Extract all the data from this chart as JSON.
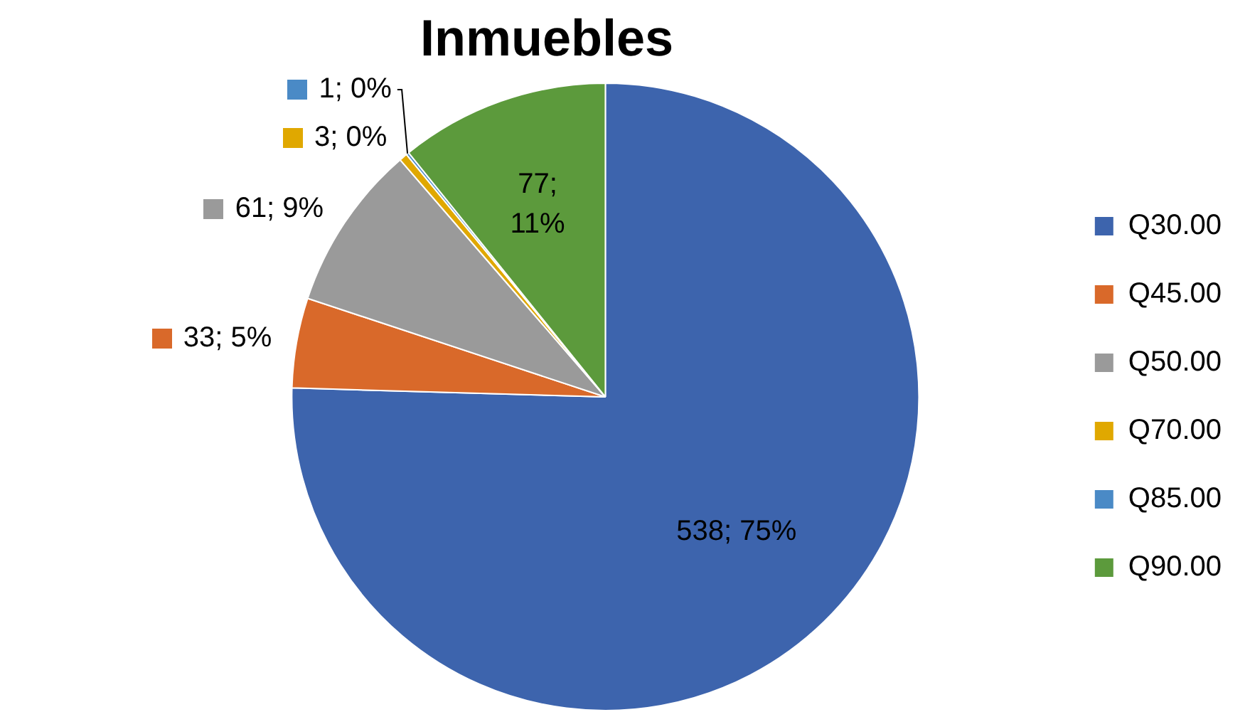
{
  "chart_data": {
    "type": "pie",
    "title": "Inmuebles",
    "categories": [
      "Q30.00",
      "Q45.00",
      "Q50.00",
      "Q70.00",
      "Q85.00",
      "Q90.00"
    ],
    "values": [
      538,
      33,
      61,
      3,
      1,
      77
    ],
    "colors": [
      "#3d64ad",
      "#d9692a",
      "#9a9a9a",
      "#e0a800",
      "#4a8ac6",
      "#5c9a3c"
    ],
    "value_labels": [
      "538; 75%",
      "33; 5%",
      "61; 9%",
      "3; 0%",
      "1; 0%",
      "77; 11%"
    ],
    "legend": "right"
  }
}
